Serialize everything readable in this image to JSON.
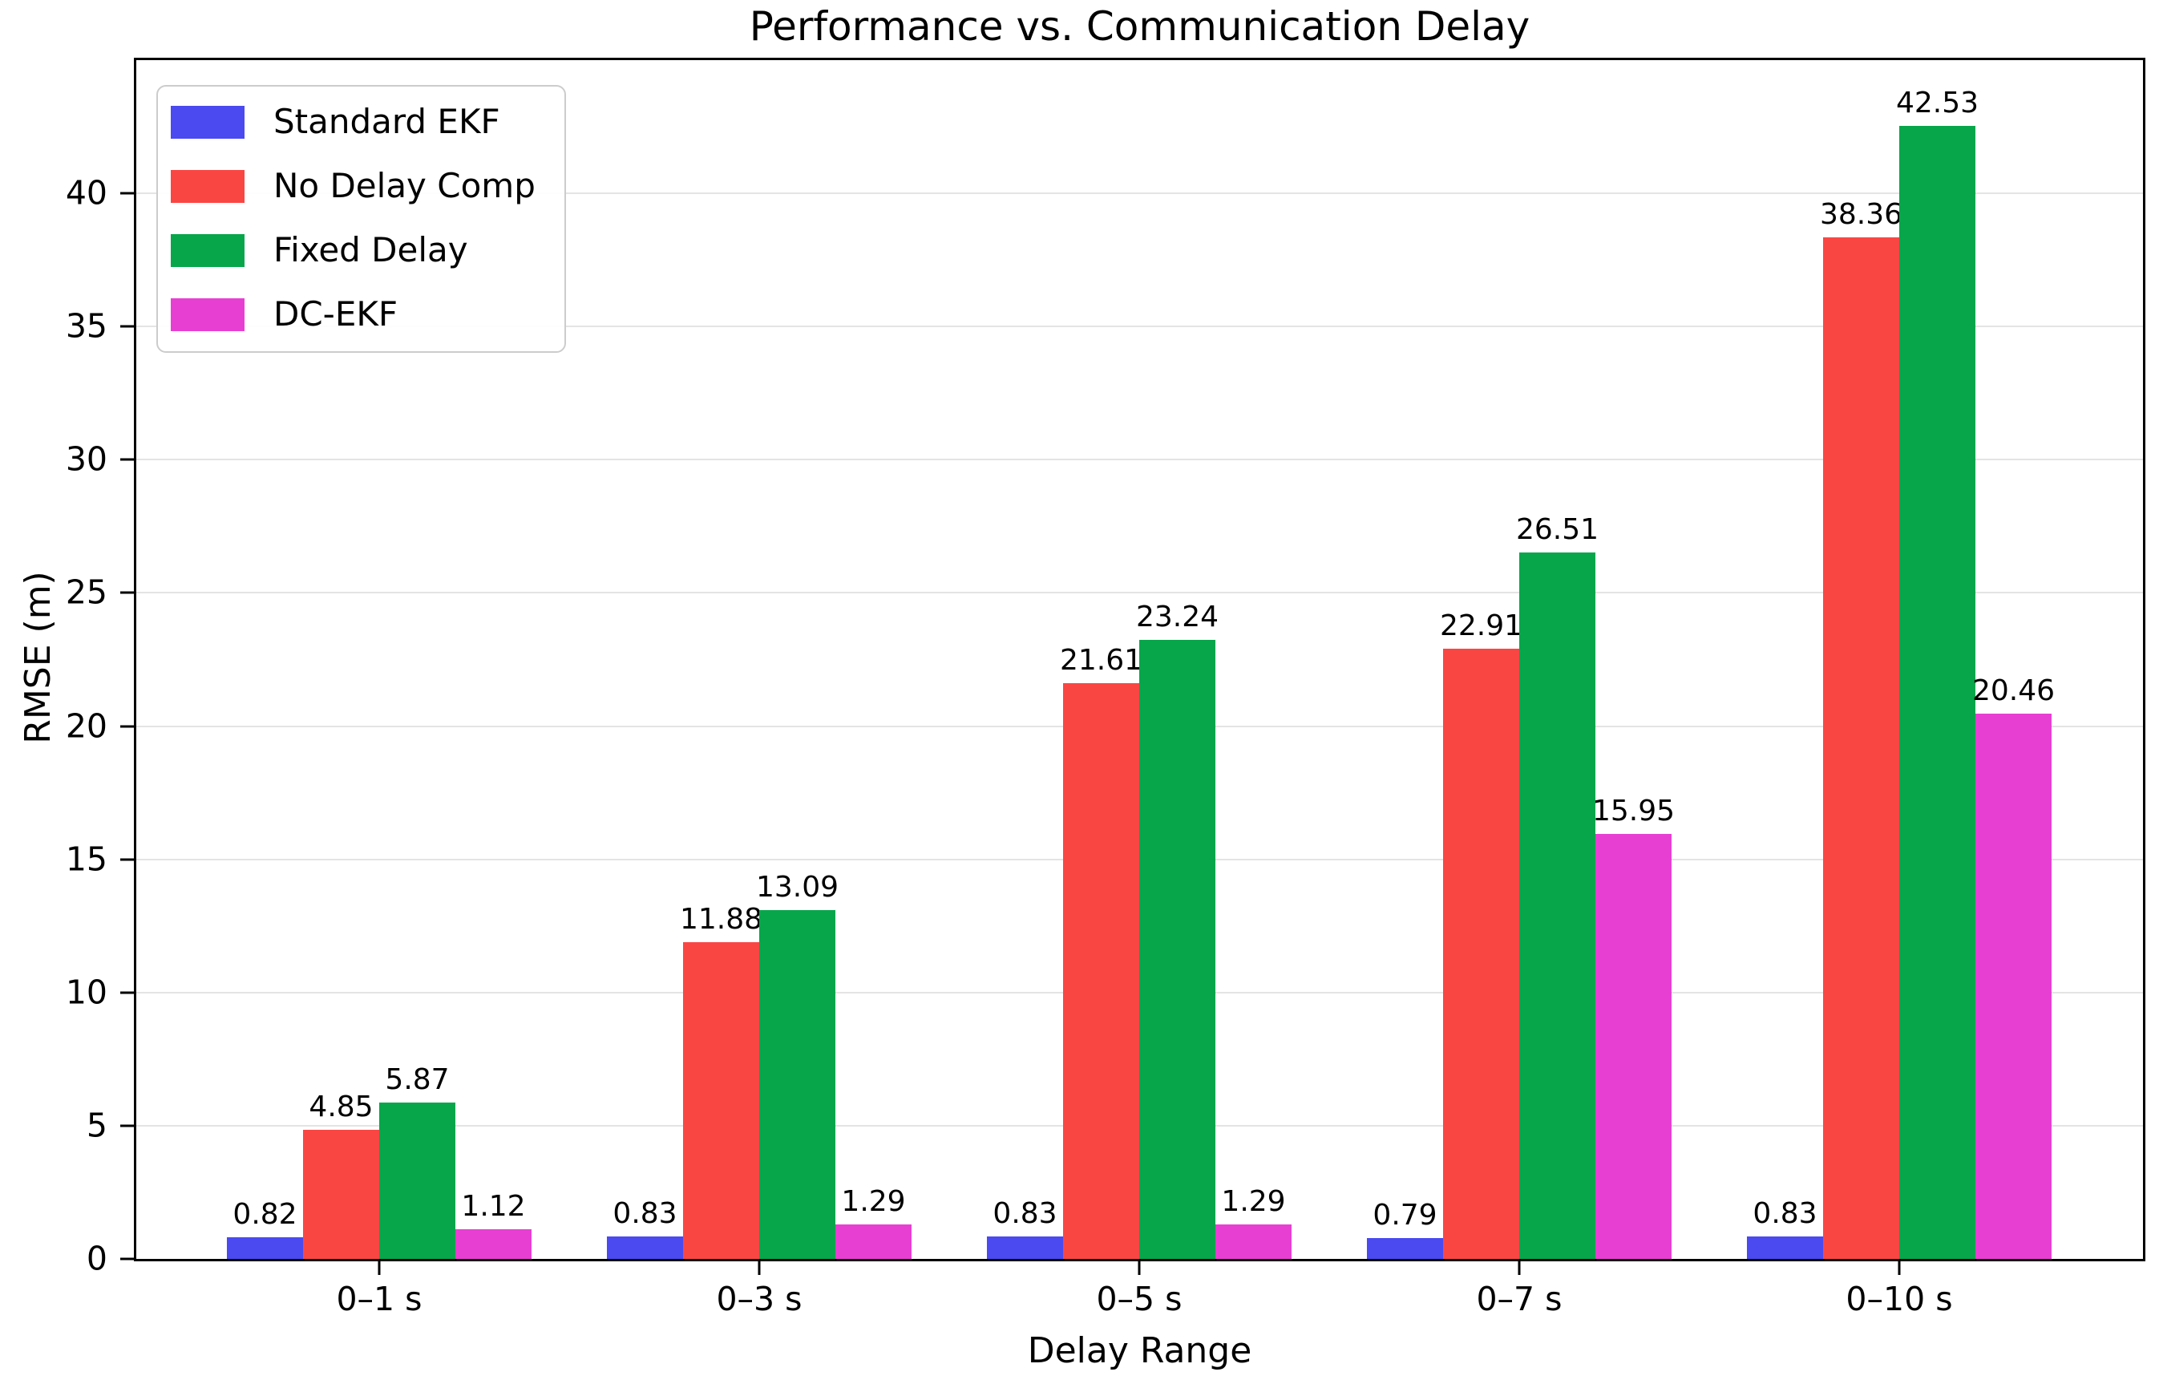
{
  "chart_data": {
    "type": "bar",
    "title": "Performance vs. Communication Delay",
    "xlabel": "Delay Range",
    "ylabel": "RMSE (m)",
    "categories": [
      "0–1 s",
      "0–3 s",
      "0–5 s",
      "0–7 s",
      "0–10 s"
    ],
    "series": [
      {
        "name": "Standard EKF",
        "color": "#4a4af0",
        "values": [
          0.82,
          0.83,
          0.83,
          0.79,
          0.83
        ]
      },
      {
        "name": "No Delay Comp",
        "color": "#fa4643",
        "values": [
          4.85,
          11.88,
          21.61,
          22.91,
          38.36
        ]
      },
      {
        "name": "Fixed Delay",
        "color": "#07a64b",
        "values": [
          5.87,
          13.09,
          23.24,
          26.51,
          42.53
        ]
      },
      {
        "name": "DC-EKF",
        "color": "#e83fd3",
        "values": [
          1.12,
          1.29,
          1.29,
          15.95,
          20.46
        ]
      }
    ],
    "bar_value_labels": [
      [
        "0.82",
        "0.83",
        "0.83",
        "0.79",
        "0.83"
      ],
      [
        "4.85",
        "11.88",
        "21.61",
        "22.91",
        "38.36"
      ],
      [
        "5.87",
        "13.09",
        "23.24",
        "26.51",
        "42.53"
      ],
      [
        "1.12",
        "1.29",
        "1.29",
        "15.95",
        "20.46"
      ]
    ],
    "ylim": [
      0,
      45
    ],
    "yticks": [
      0,
      5,
      10,
      15,
      20,
      25,
      30,
      35,
      40
    ],
    "grid": true,
    "grid_color": "#e4e4e4",
    "legend_position": "upper left",
    "axis_color": "#000000"
  }
}
